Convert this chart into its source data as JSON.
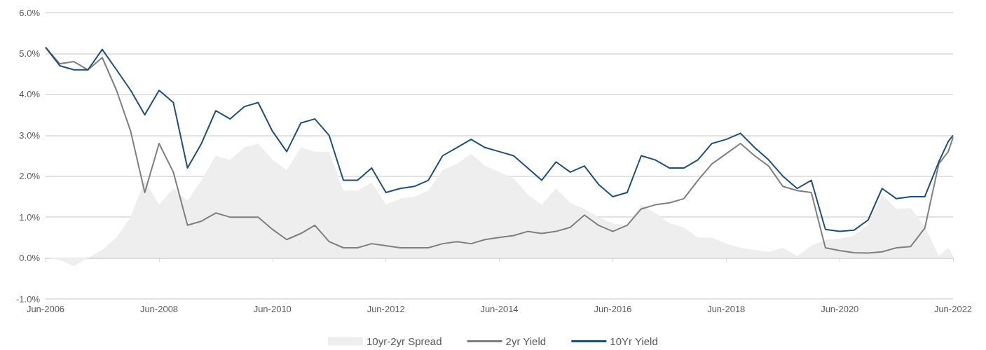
{
  "chart_data": {
    "type": "line",
    "x": [
      "2006-06",
      "2006-09",
      "2006-12",
      "2007-03",
      "2007-06",
      "2007-09",
      "2007-12",
      "2008-03",
      "2008-06",
      "2008-09",
      "2008-12",
      "2009-03",
      "2009-06",
      "2009-09",
      "2009-12",
      "2010-03",
      "2010-06",
      "2010-09",
      "2010-12",
      "2011-03",
      "2011-06",
      "2011-09",
      "2011-12",
      "2012-03",
      "2012-06",
      "2012-09",
      "2012-12",
      "2013-03",
      "2013-06",
      "2013-09",
      "2013-12",
      "2014-03",
      "2014-06",
      "2014-09",
      "2014-12",
      "2015-03",
      "2015-06",
      "2015-09",
      "2015-12",
      "2016-03",
      "2016-06",
      "2016-09",
      "2016-12",
      "2017-03",
      "2017-06",
      "2017-09",
      "2017-12",
      "2018-03",
      "2018-06",
      "2018-09",
      "2018-12",
      "2019-03",
      "2019-06",
      "2019-09",
      "2019-12",
      "2020-03",
      "2020-06",
      "2020-09",
      "2020-12",
      "2021-03",
      "2021-06",
      "2021-09",
      "2021-12",
      "2022-03",
      "2022-05",
      "2022-06"
    ],
    "series": [
      {
        "name": "10yr-2yr Spread",
        "type": "area",
        "color": "#eeeeee",
        "values": [
          0.0,
          -0.05,
          -0.2,
          0.0,
          0.2,
          0.5,
          1.0,
          1.9,
          1.3,
          1.7,
          1.4,
          1.9,
          2.5,
          2.4,
          2.7,
          2.8,
          2.4,
          2.15,
          2.7,
          2.6,
          2.6,
          1.65,
          1.65,
          1.85,
          1.3,
          1.45,
          1.5,
          1.65,
          2.15,
          2.3,
          2.55,
          2.25,
          2.1,
          1.95,
          1.55,
          1.3,
          1.7,
          1.35,
          1.2,
          1.0,
          0.85,
          0.8,
          1.3,
          1.1,
          0.85,
          0.75,
          0.5,
          0.5,
          0.35,
          0.25,
          0.2,
          0.15,
          0.25,
          0.05,
          0.3,
          0.45,
          0.47,
          0.55,
          0.81,
          1.55,
          1.2,
          1.22,
          0.77,
          0.05,
          0.25,
          0.05
        ]
      },
      {
        "name": "2yr Yield",
        "color": "#7f7f7f",
        "values": [
          5.15,
          4.75,
          4.8,
          4.6,
          4.9,
          4.1,
          3.1,
          1.6,
          2.8,
          2.1,
          0.8,
          0.9,
          1.1,
          1.0,
          1.0,
          1.0,
          0.7,
          0.45,
          0.6,
          0.8,
          0.4,
          0.25,
          0.25,
          0.35,
          0.3,
          0.25,
          0.25,
          0.25,
          0.35,
          0.4,
          0.35,
          0.45,
          0.5,
          0.55,
          0.65,
          0.6,
          0.65,
          0.75,
          1.05,
          0.8,
          0.65,
          0.8,
          1.2,
          1.3,
          1.35,
          1.45,
          1.9,
          2.3,
          2.55,
          2.8,
          2.5,
          2.25,
          1.75,
          1.65,
          1.6,
          0.25,
          0.18,
          0.13,
          0.12,
          0.15,
          0.25,
          0.28,
          0.73,
          2.3,
          2.6,
          2.95
        ]
      },
      {
        "name": "10Yr Yield",
        "color": "#1f4e79",
        "values": [
          5.15,
          4.7,
          4.6,
          4.6,
          5.1,
          4.6,
          4.1,
          3.5,
          4.1,
          3.8,
          2.2,
          2.8,
          3.6,
          3.4,
          3.7,
          3.8,
          3.1,
          2.6,
          3.3,
          3.4,
          3.0,
          1.9,
          1.9,
          2.2,
          1.6,
          1.7,
          1.75,
          1.9,
          2.5,
          2.7,
          2.9,
          2.7,
          2.6,
          2.5,
          2.2,
          1.9,
          2.35,
          2.1,
          2.25,
          1.8,
          1.5,
          1.6,
          2.5,
          2.4,
          2.2,
          2.2,
          2.4,
          2.8,
          2.9,
          3.05,
          2.7,
          2.4,
          2.0,
          1.7,
          1.9,
          0.7,
          0.65,
          0.68,
          0.93,
          1.7,
          1.45,
          1.5,
          1.5,
          2.35,
          2.85,
          3.0
        ]
      }
    ],
    "xlim": [
      "2006-06",
      "2022-06"
    ],
    "xticks": [
      {
        "value": "2006-06",
        "label": "Jun-2006"
      },
      {
        "value": "2008-06",
        "label": "Jun-2008"
      },
      {
        "value": "2010-06",
        "label": "Jun-2010"
      },
      {
        "value": "2012-06",
        "label": "Jun-2012"
      },
      {
        "value": "2014-06",
        "label": "Jun-2014"
      },
      {
        "value": "2016-06",
        "label": "Jun-2016"
      },
      {
        "value": "2018-06",
        "label": "Jun-2018"
      },
      {
        "value": "2020-06",
        "label": "Jun-2020"
      },
      {
        "value": "2022-06",
        "label": "Jun-2022"
      }
    ],
    "ylim": [
      -1,
      6
    ],
    "yticks": [
      {
        "value": -1,
        "label": "-1.0%"
      },
      {
        "value": 0,
        "label": "0.0%"
      },
      {
        "value": 1,
        "label": "1.0%"
      },
      {
        "value": 2,
        "label": "2.0%"
      },
      {
        "value": 3,
        "label": "3.0%"
      },
      {
        "value": 4,
        "label": "4.0%"
      },
      {
        "value": 5,
        "label": "5.0%"
      },
      {
        "value": 6,
        "label": "6.0%"
      }
    ],
    "grid": "y",
    "legend": "bottom",
    "marker": "none",
    "line_style": "solid"
  }
}
